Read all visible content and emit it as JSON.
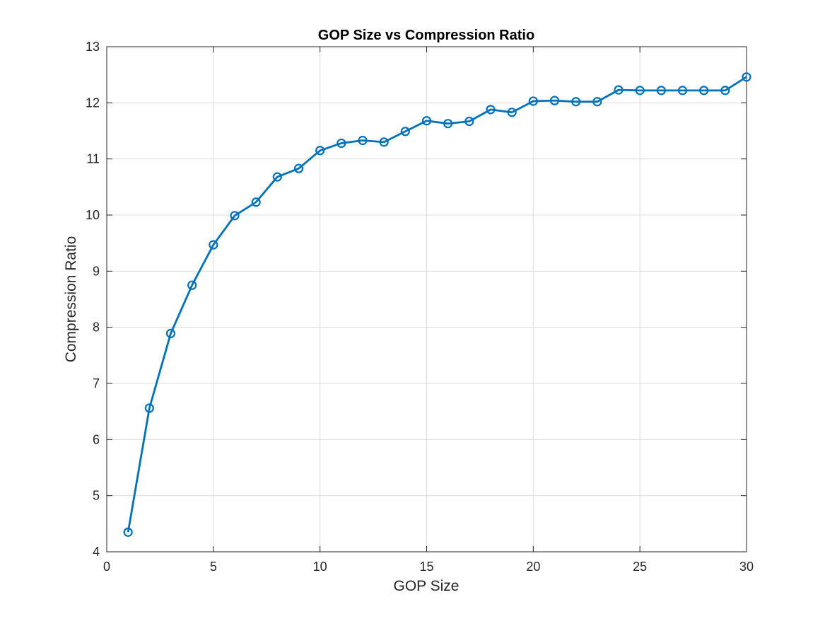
{
  "chart_data": {
    "type": "line",
    "title": "GOP Size vs Compression Ratio",
    "xlabel": "GOP Size",
    "ylabel": "Compression Ratio",
    "xlim": [
      0,
      30
    ],
    "ylim": [
      4,
      13
    ],
    "xticks": [
      0,
      5,
      10,
      15,
      20,
      25,
      30
    ],
    "yticks": [
      4,
      5,
      6,
      7,
      8,
      9,
      10,
      11,
      12,
      13
    ],
    "grid": true,
    "marker": "circle",
    "line_color": "#0072BD",
    "series": [
      {
        "x": [
          1,
          2,
          3,
          4,
          5,
          6,
          7,
          8,
          9,
          10,
          11,
          12,
          13,
          14,
          15,
          16,
          17,
          18,
          19,
          20,
          21,
          22,
          23,
          24,
          25,
          26,
          27,
          28,
          29,
          30
        ],
        "values": [
          4.35,
          6.56,
          7.89,
          8.75,
          9.47,
          9.99,
          10.23,
          10.68,
          10.83,
          11.15,
          11.28,
          11.33,
          11.3,
          11.49,
          11.68,
          11.63,
          11.67,
          11.88,
          11.83,
          12.03,
          12.04,
          12.02,
          12.02,
          12.23,
          12.22,
          12.22,
          12.22,
          12.22,
          12.22,
          12.46
        ]
      }
    ]
  }
}
